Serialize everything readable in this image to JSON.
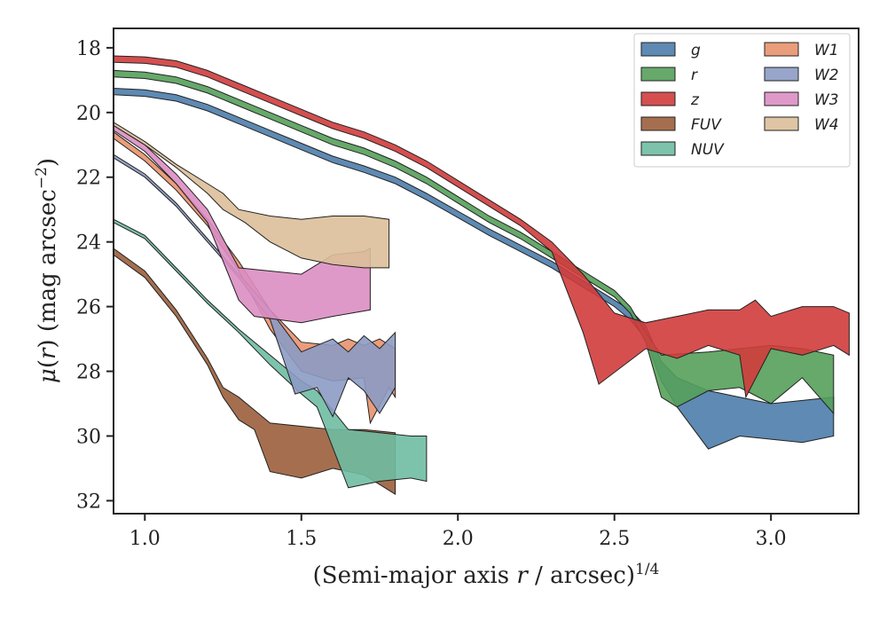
{
  "chart_data": {
    "type": "area",
    "xlabel": "(Semi-major axis r / arcsec)^{1/4}",
    "ylabel": "μ(r) (mag arcsec^{-2})",
    "xlim": [
      0.9,
      3.28
    ],
    "ylim": [
      32.4,
      17.4
    ],
    "y_inverted": true,
    "x_ticks": [
      "1.0",
      "1.5",
      "2.0",
      "2.5",
      "3.0"
    ],
    "x_tick_values": [
      1.0,
      1.5,
      2.0,
      2.5,
      3.0
    ],
    "y_ticks": [
      "18",
      "20",
      "22",
      "24",
      "26",
      "28",
      "30",
      "32"
    ],
    "y_tick_values": [
      18,
      20,
      22,
      24,
      26,
      28,
      30,
      32
    ],
    "grid": false,
    "legend_position": "top-right",
    "series": [
      {
        "name": "g",
        "color": "#4c7dab",
        "upper": [
          [
            0.9,
            19.25
          ],
          [
            1.0,
            19.3
          ],
          [
            1.1,
            19.45
          ],
          [
            1.2,
            19.75
          ],
          [
            1.3,
            20.15
          ],
          [
            1.4,
            20.55
          ],
          [
            1.5,
            20.95
          ],
          [
            1.6,
            21.35
          ],
          [
            1.7,
            21.65
          ],
          [
            1.8,
            22.0
          ],
          [
            1.9,
            22.5
          ],
          [
            2.0,
            23.05
          ],
          [
            2.1,
            23.6
          ],
          [
            2.2,
            24.1
          ],
          [
            2.3,
            24.6
          ],
          [
            2.4,
            25.2
          ],
          [
            2.5,
            25.8
          ],
          [
            2.55,
            26.1
          ],
          [
            2.6,
            26.6
          ],
          [
            2.65,
            27.7
          ],
          [
            2.7,
            28.2
          ],
          [
            2.8,
            28.6
          ],
          [
            2.9,
            28.8
          ],
          [
            3.0,
            29.0
          ],
          [
            3.2,
            28.8
          ]
        ],
        "lower": [
          [
            0.9,
            19.45
          ],
          [
            1.0,
            19.5
          ],
          [
            1.1,
            19.65
          ],
          [
            1.2,
            19.95
          ],
          [
            1.3,
            20.35
          ],
          [
            1.4,
            20.75
          ],
          [
            1.5,
            21.15
          ],
          [
            1.6,
            21.55
          ],
          [
            1.7,
            21.85
          ],
          [
            1.8,
            22.2
          ],
          [
            1.9,
            22.7
          ],
          [
            2.0,
            23.25
          ],
          [
            2.1,
            23.8
          ],
          [
            2.2,
            24.3
          ],
          [
            2.3,
            24.8
          ],
          [
            2.4,
            25.4
          ],
          [
            2.5,
            26.0
          ],
          [
            2.55,
            26.4
          ],
          [
            2.6,
            27.0
          ],
          [
            2.65,
            28.3
          ],
          [
            2.7,
            29.1
          ],
          [
            2.8,
            30.4
          ],
          [
            2.9,
            30.0
          ],
          [
            3.0,
            30.1
          ],
          [
            3.1,
            30.2
          ],
          [
            3.2,
            30.0
          ]
        ]
      },
      {
        "name": "r",
        "color": "#55a05a",
        "upper": [
          [
            0.9,
            18.7
          ],
          [
            1.0,
            18.75
          ],
          [
            1.1,
            18.9
          ],
          [
            1.2,
            19.2
          ],
          [
            1.3,
            19.6
          ],
          [
            1.4,
            20.0
          ],
          [
            1.5,
            20.4
          ],
          [
            1.6,
            20.8
          ],
          [
            1.7,
            21.1
          ],
          [
            1.8,
            21.5
          ],
          [
            1.9,
            22.0
          ],
          [
            2.0,
            22.6
          ],
          [
            2.1,
            23.2
          ],
          [
            2.2,
            23.7
          ],
          [
            2.3,
            24.3
          ],
          [
            2.4,
            24.9
          ],
          [
            2.5,
            25.5
          ],
          [
            2.55,
            26.0
          ],
          [
            2.6,
            26.8
          ],
          [
            2.65,
            27.5
          ],
          [
            2.8,
            27.4
          ],
          [
            2.9,
            27.3
          ],
          [
            3.0,
            27.2
          ],
          [
            3.1,
            27.3
          ],
          [
            3.2,
            27.5
          ]
        ],
        "lower": [
          [
            0.9,
            18.9
          ],
          [
            1.0,
            18.95
          ],
          [
            1.1,
            19.1
          ],
          [
            1.2,
            19.4
          ],
          [
            1.3,
            19.8
          ],
          [
            1.4,
            20.2
          ],
          [
            1.5,
            20.6
          ],
          [
            1.6,
            21.0
          ],
          [
            1.7,
            21.3
          ],
          [
            1.8,
            21.7
          ],
          [
            1.9,
            22.2
          ],
          [
            2.0,
            22.8
          ],
          [
            2.1,
            23.4
          ],
          [
            2.2,
            23.9
          ],
          [
            2.3,
            24.5
          ],
          [
            2.4,
            25.1
          ],
          [
            2.5,
            25.7
          ],
          [
            2.55,
            26.2
          ],
          [
            2.6,
            27.1
          ],
          [
            2.65,
            28.8
          ],
          [
            2.7,
            29.1
          ],
          [
            2.8,
            28.6
          ],
          [
            2.9,
            28.5
          ],
          [
            3.0,
            29.0
          ],
          [
            3.1,
            28.2
          ],
          [
            3.2,
            29.3
          ]
        ]
      },
      {
        "name": "z",
        "color": "#d03c3c",
        "upper": [
          [
            0.9,
            18.25
          ],
          [
            1.0,
            18.28
          ],
          [
            1.1,
            18.4
          ],
          [
            1.2,
            18.7
          ],
          [
            1.3,
            19.1
          ],
          [
            1.4,
            19.5
          ],
          [
            1.5,
            19.9
          ],
          [
            1.6,
            20.3
          ],
          [
            1.7,
            20.6
          ],
          [
            1.8,
            21.0
          ],
          [
            1.9,
            21.5
          ],
          [
            2.0,
            22.1
          ],
          [
            2.1,
            22.7
          ],
          [
            2.2,
            23.3
          ],
          [
            2.3,
            24.0
          ],
          [
            2.4,
            25.0
          ],
          [
            2.5,
            26.2
          ],
          [
            2.6,
            26.5
          ],
          [
            2.7,
            26.3
          ],
          [
            2.8,
            26.1
          ],
          [
            2.9,
            26.1
          ],
          [
            2.95,
            25.8
          ],
          [
            3.0,
            26.3
          ],
          [
            3.1,
            26.0
          ],
          [
            3.2,
            26.0
          ],
          [
            3.25,
            26.2
          ]
        ],
        "lower": [
          [
            0.9,
            18.45
          ],
          [
            1.0,
            18.48
          ],
          [
            1.1,
            18.6
          ],
          [
            1.2,
            18.9
          ],
          [
            1.3,
            19.3
          ],
          [
            1.4,
            19.7
          ],
          [
            1.5,
            20.1
          ],
          [
            1.6,
            20.5
          ],
          [
            1.7,
            20.8
          ],
          [
            1.8,
            21.2
          ],
          [
            1.9,
            21.7
          ],
          [
            2.0,
            22.3
          ],
          [
            2.1,
            22.9
          ],
          [
            2.2,
            23.5
          ],
          [
            2.3,
            24.3
          ],
          [
            2.4,
            26.8
          ],
          [
            2.45,
            28.4
          ],
          [
            2.6,
            27.3
          ],
          [
            2.7,
            27.6
          ],
          [
            2.8,
            27.2
          ],
          [
            2.9,
            27.5
          ],
          [
            2.92,
            28.8
          ],
          [
            3.0,
            27.3
          ],
          [
            3.1,
            27.5
          ],
          [
            3.2,
            27.2
          ],
          [
            3.25,
            27.5
          ]
        ]
      },
      {
        "name": "FUV",
        "color": "#9b5f3c",
        "upper": [
          [
            0.9,
            24.2
          ],
          [
            1.0,
            24.9
          ],
          [
            1.1,
            26.1
          ],
          [
            1.2,
            27.6
          ],
          [
            1.25,
            28.5
          ],
          [
            1.3,
            28.8
          ],
          [
            1.35,
            29.2
          ],
          [
            1.4,
            29.6
          ],
          [
            1.5,
            29.7
          ],
          [
            1.6,
            29.8
          ],
          [
            1.7,
            29.8
          ],
          [
            1.8,
            29.9
          ]
        ],
        "lower": [
          [
            0.9,
            24.4
          ],
          [
            1.0,
            25.1
          ],
          [
            1.1,
            26.3
          ],
          [
            1.2,
            27.8
          ],
          [
            1.25,
            28.8
          ],
          [
            1.3,
            29.5
          ],
          [
            1.35,
            29.8
          ],
          [
            1.4,
            31.1
          ],
          [
            1.5,
            31.3
          ],
          [
            1.6,
            31.0
          ],
          [
            1.7,
            31.2
          ],
          [
            1.8,
            31.8
          ]
        ]
      },
      {
        "name": "NUV",
        "color": "#6fbca2",
        "upper": [
          [
            0.9,
            23.3
          ],
          [
            1.0,
            23.8
          ],
          [
            1.1,
            24.8
          ],
          [
            1.2,
            25.8
          ],
          [
            1.3,
            26.7
          ],
          [
            1.4,
            27.5
          ],
          [
            1.5,
            28.3
          ],
          [
            1.55,
            28.6
          ],
          [
            1.65,
            29.8
          ],
          [
            1.75,
            29.9
          ],
          [
            1.85,
            30.0
          ],
          [
            1.9,
            30.0
          ]
        ],
        "lower": [
          [
            0.9,
            23.4
          ],
          [
            1.0,
            23.9
          ],
          [
            1.1,
            24.9
          ],
          [
            1.2,
            25.9
          ],
          [
            1.3,
            26.8
          ],
          [
            1.4,
            27.8
          ],
          [
            1.5,
            28.7
          ],
          [
            1.55,
            29.1
          ],
          [
            1.65,
            31.6
          ],
          [
            1.75,
            31.4
          ],
          [
            1.85,
            31.3
          ],
          [
            1.9,
            31.4
          ]
        ]
      },
      {
        "name": "W1",
        "color": "#e8926c",
        "upper": [
          [
            0.9,
            20.6
          ],
          [
            1.0,
            21.3
          ],
          [
            1.1,
            22.2
          ],
          [
            1.2,
            23.3
          ],
          [
            1.3,
            24.6
          ],
          [
            1.4,
            26.1
          ],
          [
            1.5,
            27.1
          ],
          [
            1.6,
            27.2
          ],
          [
            1.65,
            27.0
          ],
          [
            1.7,
            27.2
          ],
          [
            1.75,
            27.0
          ],
          [
            1.8,
            27.3
          ]
        ],
        "lower": [
          [
            0.9,
            20.8
          ],
          [
            1.0,
            21.5
          ],
          [
            1.1,
            22.4
          ],
          [
            1.2,
            23.5
          ],
          [
            1.3,
            24.9
          ],
          [
            1.4,
            26.7
          ],
          [
            1.5,
            28.0
          ],
          [
            1.6,
            28.3
          ],
          [
            1.7,
            28.2
          ],
          [
            1.72,
            29.6
          ],
          [
            1.78,
            28.5
          ],
          [
            1.8,
            28.8
          ]
        ]
      },
      {
        "name": "W2",
        "color": "#8c9bc4",
        "upper": [
          [
            0.9,
            21.3
          ],
          [
            1.0,
            21.9
          ],
          [
            1.1,
            22.8
          ],
          [
            1.2,
            23.9
          ],
          [
            1.3,
            25.0
          ],
          [
            1.4,
            26.1
          ],
          [
            1.5,
            27.4
          ],
          [
            1.6,
            27.0
          ],
          [
            1.65,
            27.4
          ],
          [
            1.7,
            26.9
          ],
          [
            1.75,
            27.3
          ],
          [
            1.8,
            26.8
          ]
        ],
        "lower": [
          [
            0.9,
            21.4
          ],
          [
            1.0,
            22.0
          ],
          [
            1.1,
            22.9
          ],
          [
            1.2,
            24.0
          ],
          [
            1.3,
            25.1
          ],
          [
            1.4,
            26.4
          ],
          [
            1.48,
            28.7
          ],
          [
            1.55,
            28.5
          ],
          [
            1.6,
            29.4
          ],
          [
            1.65,
            28.2
          ],
          [
            1.7,
            28.6
          ],
          [
            1.75,
            29.3
          ],
          [
            1.8,
            28.5
          ]
        ]
      },
      {
        "name": "W3",
        "color": "#dc8ec3",
        "upper": [
          [
            0.9,
            20.4
          ],
          [
            1.0,
            21.0
          ],
          [
            1.1,
            21.9
          ],
          [
            1.2,
            23.0
          ],
          [
            1.3,
            24.8
          ],
          [
            1.4,
            24.9
          ],
          [
            1.5,
            25.0
          ],
          [
            1.6,
            24.4
          ],
          [
            1.7,
            24.3
          ],
          [
            1.72,
            24.2
          ]
        ],
        "lower": [
          [
            0.9,
            20.55
          ],
          [
            1.0,
            21.2
          ],
          [
            1.1,
            22.2
          ],
          [
            1.2,
            23.4
          ],
          [
            1.3,
            25.8
          ],
          [
            1.35,
            26.3
          ],
          [
            1.5,
            26.5
          ],
          [
            1.6,
            26.3
          ],
          [
            1.72,
            26.1
          ]
        ]
      },
      {
        "name": "W4",
        "color": "#dbbf99",
        "upper": [
          [
            0.9,
            20.3
          ],
          [
            1.0,
            20.9
          ],
          [
            1.1,
            21.6
          ],
          [
            1.2,
            22.2
          ],
          [
            1.25,
            22.5
          ],
          [
            1.3,
            23.0
          ],
          [
            1.4,
            23.2
          ],
          [
            1.5,
            23.3
          ],
          [
            1.6,
            23.2
          ],
          [
            1.7,
            23.2
          ],
          [
            1.78,
            23.3
          ]
        ],
        "lower": [
          [
            0.9,
            20.4
          ],
          [
            1.0,
            21.0
          ],
          [
            1.1,
            21.7
          ],
          [
            1.2,
            22.5
          ],
          [
            1.25,
            23.0
          ],
          [
            1.32,
            23.4
          ],
          [
            1.4,
            24.0
          ],
          [
            1.5,
            24.5
          ],
          [
            1.6,
            24.7
          ],
          [
            1.7,
            24.8
          ],
          [
            1.78,
            24.8
          ]
        ]
      }
    ]
  }
}
